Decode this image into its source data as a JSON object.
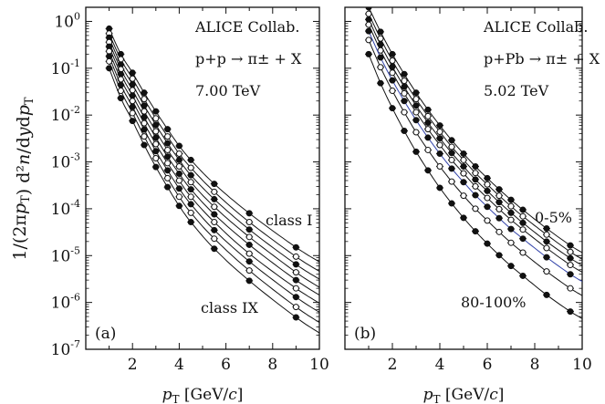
{
  "y_axis_label": "1/(2πp_T) d²n/dydp_T",
  "chart_data": [
    {
      "type": "scatter",
      "panel_label": "(a)",
      "x_axis": {
        "title": "p_T [GeV/c]",
        "range": [
          0,
          10
        ],
        "ticks": [
          "2",
          "4",
          "6",
          "8",
          "10"
        ]
      },
      "y_axis": {
        "scale": "log",
        "range": [
          1e-07,
          2
        ],
        "ticks": [
          "10^0",
          "10^-1",
          "10^-2",
          "10^-3",
          "10^-4",
          "10^-5",
          "10^-6",
          "10^-7"
        ]
      },
      "annotations": [
        "ALICE Collab.",
        "p+p → π± + X",
        "7.00 TeV"
      ],
      "curve_labels": {
        "top": "class I",
        "bottom": "class IX"
      },
      "series": [
        {
          "x": [
            1.0,
            1.5,
            2.0,
            2.5,
            3.0,
            3.5,
            4.0,
            4.5,
            5.5,
            7.0,
            9.0
          ],
          "y": [
            0.7,
            0.2,
            0.08,
            0.03,
            0.012,
            0.005,
            0.0022,
            0.0011,
            0.00034,
            8e-05,
            1.5e-05
          ]
        },
        {
          "x": [
            1.0,
            1.5,
            2.0,
            2.5,
            3.0,
            3.5,
            4.0,
            4.5,
            5.5,
            7.0,
            9.0
          ],
          "y": [
            0.55,
            0.155,
            0.06,
            0.022,
            0.0085,
            0.0035,
            0.0015,
            0.00075,
            0.00023,
            5.2e-05,
            9.5e-06
          ]
        },
        {
          "x": [
            1.0,
            1.5,
            2.0,
            2.5,
            3.0,
            3.5,
            4.0,
            4.5,
            5.5,
            7.0,
            9.0
          ],
          "y": [
            0.45,
            0.12,
            0.045,
            0.016,
            0.0062,
            0.0025,
            0.0011,
            0.00052,
            0.00016,
            3.6e-05,
            6.5e-06
          ]
        },
        {
          "x": [
            1.0,
            1.5,
            2.0,
            2.5,
            3.0,
            3.5,
            4.0,
            4.5,
            5.5,
            7.0,
            9.0
          ],
          "y": [
            0.36,
            0.095,
            0.034,
            0.012,
            0.0045,
            0.0018,
            0.0008,
            0.00037,
            0.00011,
            2.5e-05,
            4.4e-06
          ]
        },
        {
          "x": [
            1.0,
            1.5,
            2.0,
            2.5,
            3.0,
            3.5,
            4.0,
            4.5,
            5.5,
            7.0,
            9.0
          ],
          "y": [
            0.29,
            0.075,
            0.026,
            0.009,
            0.0033,
            0.0013,
            0.00056,
            0.00026,
            7.6e-05,
            1.7e-05,
            3e-06
          ]
        },
        {
          "x": [
            1.0,
            1.5,
            2.0,
            2.5,
            3.0,
            3.5,
            4.0,
            4.5,
            5.5,
            7.0,
            9.0
          ],
          "y": [
            0.23,
            0.058,
            0.02,
            0.0067,
            0.0024,
            0.00094,
            0.0004,
            0.00018,
            5.2e-05,
            1.1e-05,
            2e-06
          ]
        },
        {
          "x": [
            1.0,
            1.5,
            2.0,
            2.5,
            3.0,
            3.5,
            4.0,
            4.5,
            5.5,
            7.0,
            9.0
          ],
          "y": [
            0.18,
            0.044,
            0.015,
            0.0049,
            0.0017,
            0.00066,
            0.00027,
            0.000125,
            3.5e-05,
            7.5e-06,
            1.3e-06
          ]
        },
        {
          "x": [
            1.0,
            1.5,
            2.0,
            2.5,
            3.0,
            3.5,
            4.0,
            4.5,
            5.5,
            7.0,
            9.0
          ],
          "y": [
            0.14,
            0.033,
            0.011,
            0.0035,
            0.0012,
            0.00045,
            0.00018,
            8.2e-05,
            2.3e-05,
            4.8e-06,
            8e-07
          ]
        },
        {
          "x": [
            1.0,
            1.5,
            2.0,
            2.5,
            3.0,
            3.5,
            4.0,
            4.5,
            5.5,
            7.0,
            9.0
          ],
          "y": [
            0.1,
            0.023,
            0.0075,
            0.0023,
            0.00078,
            0.00029,
            0.000115,
            5.2e-05,
            1.4e-05,
            2.9e-06,
            4.8e-07
          ]
        }
      ]
    },
    {
      "type": "scatter",
      "panel_label": "(b)",
      "x_axis": {
        "title": "p_T [GeV/c]",
        "range": [
          0,
          10
        ],
        "ticks": [
          "2",
          "4",
          "6",
          "8",
          "10"
        ]
      },
      "y_axis": {
        "scale": "log",
        "range": [
          1e-07,
          2
        ]
      },
      "annotations": [
        "ALICE Collab.",
        "p+Pb → π± + X",
        "5.02 TeV"
      ],
      "curve_labels": {
        "top": "0-5%",
        "bottom": "80-100%"
      },
      "series": [
        {
          "x": [
            1.0,
            1.5,
            2.0,
            2.5,
            3.0,
            3.5,
            4.0,
            4.5,
            5.0,
            5.5,
            6.0,
            6.5,
            7.0,
            7.5,
            8.5,
            9.5
          ],
          "y": [
            2.0,
            0.6,
            0.2,
            0.075,
            0.03,
            0.013,
            0.006,
            0.0029,
            0.0015,
            0.0008,
            0.00045,
            0.00026,
            0.000155,
            9.5e-05,
            3.8e-05,
            1.65e-05
          ]
        },
        {
          "x": [
            1.0,
            1.5,
            2.0,
            2.5,
            3.0,
            3.5,
            4.0,
            4.5,
            5.0,
            5.5,
            6.0,
            6.5,
            7.0,
            7.5,
            8.5,
            9.5
          ],
          "y": [
            1.45,
            0.43,
            0.145,
            0.054,
            0.022,
            0.0095,
            0.0044,
            0.0021,
            0.0011,
            0.00058,
            0.00033,
            0.00019,
            0.000113,
            6.9e-05,
            2.8e-05,
            1.2e-05
          ]
        },
        {
          "x": [
            1.0,
            1.5,
            2.0,
            2.5,
            3.0,
            3.5,
            4.0,
            4.5,
            5.0,
            5.5,
            6.0,
            6.5,
            7.0,
            7.5,
            8.5,
            9.5
          ],
          "y": [
            1.1,
            0.32,
            0.108,
            0.04,
            0.016,
            0.0069,
            0.0032,
            0.00155,
            0.0008,
            0.00042,
            0.00024,
            0.000138,
            8.2e-05,
            5e-05,
            2e-05,
            8.8e-06
          ]
        },
        {
          "x": [
            1.0,
            1.5,
            2.0,
            2.5,
            3.0,
            3.5,
            4.0,
            4.5,
            5.0,
            5.5,
            6.0,
            6.5,
            7.0,
            7.5,
            8.5,
            9.5
          ],
          "y": [
            0.85,
            0.24,
            0.08,
            0.029,
            0.0115,
            0.005,
            0.0023,
            0.0011,
            0.00057,
            0.0003,
            0.00017,
            9.8e-05,
            5.8e-05,
            3.6e-05,
            1.45e-05,
            6.3e-06
          ]
        },
        {
          "x": [
            1.0,
            1.5,
            2.0,
            2.5,
            3.0,
            3.5,
            4.0,
            4.5,
            5.0,
            5.5,
            6.0,
            6.5,
            7.0,
            7.5,
            8.5,
            9.5
          ],
          "y": [
            0.62,
            0.17,
            0.055,
            0.02,
            0.0078,
            0.0033,
            0.0015,
            0.00072,
            0.00037,
            0.000195,
            0.00011,
            6.3e-05,
            3.7e-05,
            2.3e-05,
            9.2e-06,
            4e-06
          ]
        },
        {
          "x": [
            1.0,
            1.5,
            2.0,
            2.5,
            3.0,
            3.5,
            4.0,
            4.5,
            5.0,
            5.5,
            6.0,
            6.5,
            7.0,
            7.5,
            8.5,
            9.5
          ],
          "y": [
            0.4,
            0.105,
            0.033,
            0.0115,
            0.0043,
            0.0018,
            0.0008,
            0.00038,
            0.00019,
            0.0001,
            5.6e-05,
            3.2e-05,
            1.88e-05,
            1.16e-05,
            4.6e-06,
            2e-06
          ]
        },
        {
          "x": [
            1.0,
            1.5,
            2.0,
            2.5,
            3.0,
            3.5,
            4.0,
            4.5,
            5.0,
            5.5,
            6.0,
            6.5,
            7.0,
            7.5,
            8.5,
            9.5
          ],
          "y": [
            0.2,
            0.048,
            0.014,
            0.0046,
            0.00165,
            0.00066,
            0.00028,
            0.00013,
            6.4e-05,
            3.3e-05,
            1.8e-05,
            1.02e-05,
            6e-06,
            3.7e-06,
            1.45e-06,
            6.4e-07
          ]
        }
      ]
    }
  ]
}
